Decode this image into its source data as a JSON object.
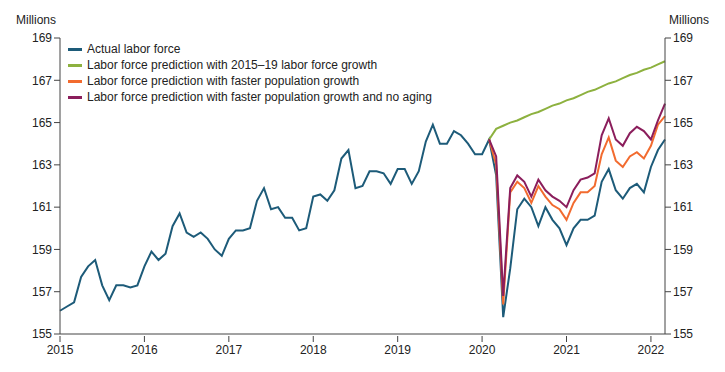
{
  "chart_data": {
    "type": "line",
    "ylabel": "Millions",
    "y2label": "Millions",
    "legend": "upper left",
    "grid": false,
    "ylim": [
      155,
      169
    ],
    "yticks": [
      155,
      157,
      159,
      161,
      163,
      165,
      167,
      169
    ],
    "y2lim": [
      155,
      169
    ],
    "y2ticks": [
      155,
      157,
      159,
      161,
      163,
      165,
      167,
      169
    ],
    "categories": [
      "2015",
      null,
      null,
      null,
      null,
      null,
      null,
      null,
      null,
      null,
      null,
      null,
      "2016",
      null,
      null,
      null,
      null,
      null,
      null,
      null,
      null,
      null,
      null,
      null,
      "2017",
      null,
      null,
      null,
      null,
      null,
      null,
      null,
      null,
      null,
      null,
      null,
      "2018",
      null,
      null,
      null,
      null,
      null,
      null,
      null,
      null,
      null,
      null,
      null,
      "2019",
      null,
      null,
      null,
      null,
      null,
      null,
      null,
      null,
      null,
      null,
      null,
      "2020",
      null,
      null,
      null,
      null,
      null,
      null,
      null,
      null,
      null,
      null,
      null,
      "2021",
      null,
      null,
      null,
      null,
      null,
      null,
      null,
      null,
      null,
      null,
      null,
      "2022",
      null,
      null
    ],
    "series": [
      {
        "name": "Actual labor force",
        "color": "#1d5b79",
        "values": [
          156.1,
          156.3,
          156.5,
          157.7,
          158.2,
          158.5,
          157.3,
          156.6,
          157.3,
          157.3,
          157.2,
          157.3,
          158.2,
          158.9,
          158.5,
          158.8,
          160.1,
          160.7,
          159.8,
          159.6,
          159.8,
          159.5,
          159.0,
          158.7,
          159.5,
          159.9,
          159.9,
          160.0,
          161.3,
          161.9,
          160.9,
          161.0,
          160.5,
          160.5,
          159.9,
          160.0,
          161.5,
          161.6,
          161.3,
          161.8,
          163.3,
          163.7,
          161.9,
          162.0,
          162.7,
          162.7,
          162.6,
          162.1,
          162.8,
          162.8,
          162.1,
          162.7,
          164.1,
          164.9,
          164.0,
          164.0,
          164.6,
          164.4,
          164.0,
          163.5,
          163.5,
          164.2,
          162.5,
          155.8,
          158.1,
          160.9,
          161.4,
          161.0,
          160.1,
          161.0,
          160.4,
          160.0,
          159.2,
          160.0,
          160.4,
          160.4,
          160.6,
          162.2,
          162.8,
          161.8,
          161.4,
          161.9,
          162.1,
          161.7,
          162.9,
          163.7,
          164.2
        ]
      },
      {
        "name": "Labor force prediction with 2015–19 labor force growth",
        "color": "#8db13f",
        "values": [
          null,
          null,
          null,
          null,
          null,
          null,
          null,
          null,
          null,
          null,
          null,
          null,
          null,
          null,
          null,
          null,
          null,
          null,
          null,
          null,
          null,
          null,
          null,
          null,
          null,
          null,
          null,
          null,
          null,
          null,
          null,
          null,
          null,
          null,
          null,
          null,
          null,
          null,
          null,
          null,
          null,
          null,
          null,
          null,
          null,
          null,
          null,
          null,
          null,
          null,
          null,
          null,
          null,
          null,
          null,
          null,
          null,
          null,
          null,
          null,
          null,
          164.2,
          164.7,
          164.85,
          165.0,
          165.1,
          165.25,
          165.4,
          165.5,
          165.65,
          165.8,
          165.9,
          166.05,
          166.15,
          166.3,
          166.45,
          166.55,
          166.7,
          166.85,
          166.95,
          167.1,
          167.25,
          167.35,
          167.5,
          167.6,
          167.75,
          167.9
        ]
      },
      {
        "name": "Labor force prediction with faster population growth",
        "color": "#f26b2f",
        "values": [
          null,
          null,
          null,
          null,
          null,
          null,
          null,
          null,
          null,
          null,
          null,
          null,
          null,
          null,
          null,
          null,
          null,
          null,
          null,
          null,
          null,
          null,
          null,
          null,
          null,
          null,
          null,
          null,
          null,
          null,
          null,
          null,
          null,
          null,
          null,
          null,
          null,
          null,
          null,
          null,
          null,
          null,
          null,
          null,
          null,
          null,
          null,
          null,
          null,
          null,
          null,
          null,
          null,
          null,
          null,
          null,
          null,
          null,
          null,
          null,
          null,
          164.2,
          163.0,
          156.4,
          161.7,
          162.2,
          161.9,
          161.2,
          162.0,
          161.5,
          161.1,
          160.9,
          160.4,
          161.2,
          161.7,
          161.7,
          162.0,
          163.5,
          164.3,
          163.2,
          162.9,
          163.4,
          163.6,
          163.3,
          163.9,
          164.9,
          165.3
        ]
      },
      {
        "name": "Labor force prediction with faster population growth and no aging",
        "color": "#8b1e5c",
        "values": [
          null,
          null,
          null,
          null,
          null,
          null,
          null,
          null,
          null,
          null,
          null,
          null,
          null,
          null,
          null,
          null,
          null,
          null,
          null,
          null,
          null,
          null,
          null,
          null,
          null,
          null,
          null,
          null,
          null,
          null,
          null,
          null,
          null,
          null,
          null,
          null,
          null,
          null,
          null,
          null,
          null,
          null,
          null,
          null,
          null,
          null,
          null,
          null,
          null,
          null,
          null,
          null,
          null,
          null,
          null,
          null,
          null,
          null,
          null,
          null,
          null,
          164.2,
          163.4,
          156.8,
          161.9,
          162.5,
          162.2,
          161.5,
          162.3,
          161.8,
          161.5,
          161.3,
          161.0,
          161.8,
          162.3,
          162.4,
          162.6,
          164.4,
          165.2,
          164.2,
          163.9,
          164.5,
          164.8,
          164.6,
          164.2,
          165.1,
          165.9
        ]
      }
    ]
  }
}
